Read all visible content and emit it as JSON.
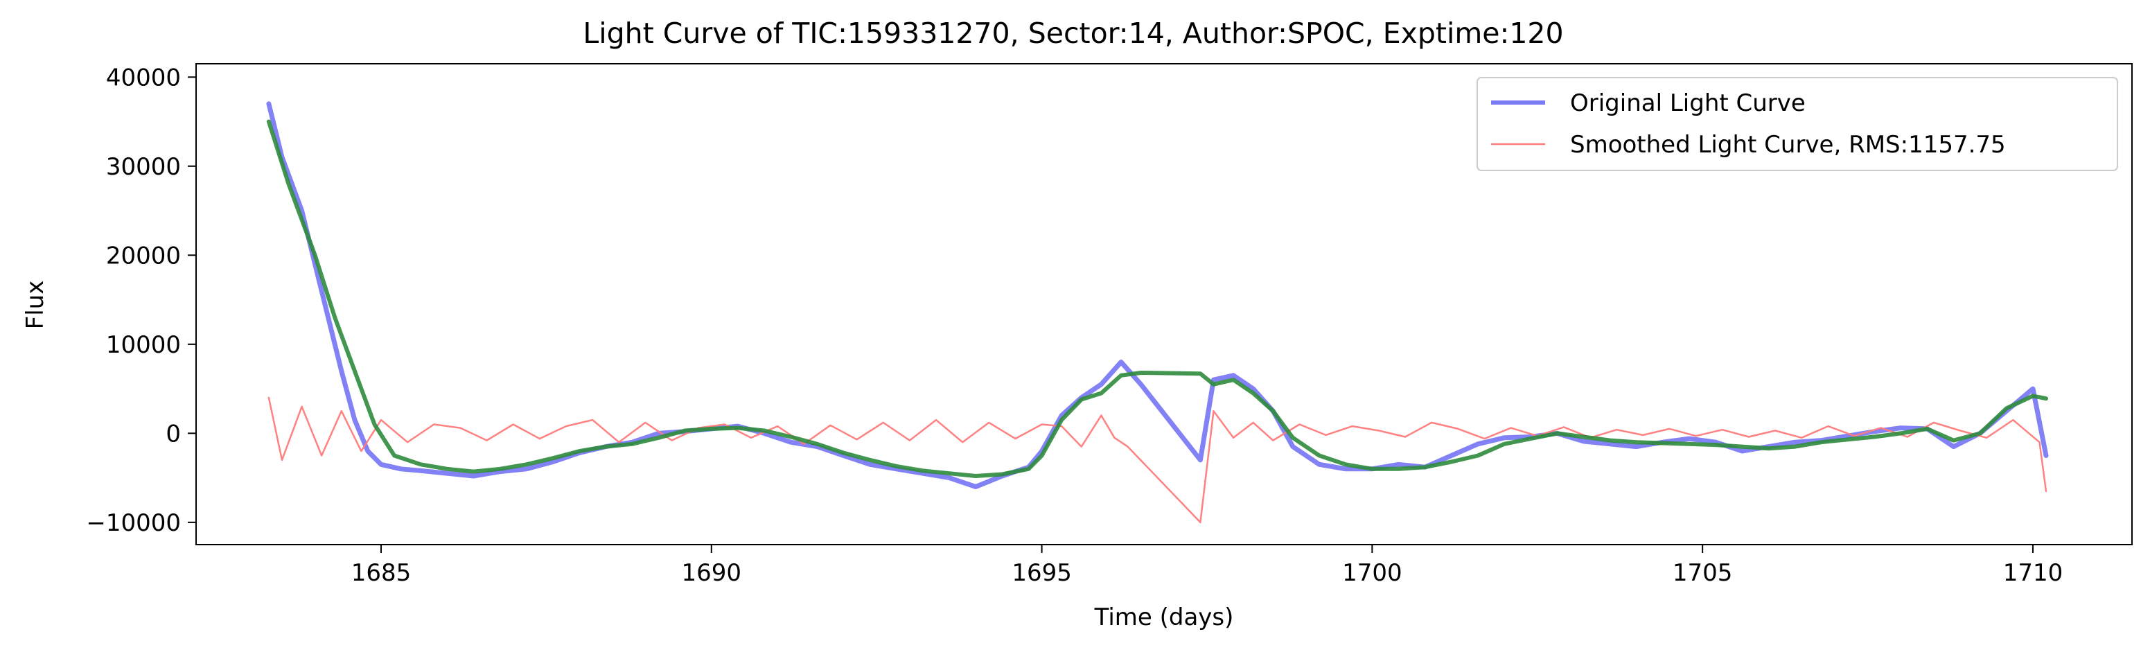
{
  "chart_data": {
    "type": "line",
    "title": "Light Curve of TIC:159331270, Sector:14, Author:SPOC, Exptime:120",
    "xlabel": "Time (days)",
    "ylabel": "Flux",
    "xlim": [
      1682.2,
      1711.5
    ],
    "ylim": [
      -12500,
      41500
    ],
    "xticks": [
      1685,
      1690,
      1695,
      1700,
      1705,
      1710
    ],
    "xtick_labels": [
      "1685",
      "1690",
      "1695",
      "1700",
      "1705",
      "1710"
    ],
    "yticks": [
      -10000,
      0,
      10000,
      20000,
      30000,
      40000
    ],
    "ytick_labels": [
      "−10000",
      "0",
      "10000",
      "20000",
      "30000",
      "40000"
    ],
    "grid": false,
    "legend_position": "top-right",
    "legend": [
      {
        "label": "Original Light Curve",
        "color": "#7b7bf5",
        "style": "thick"
      },
      {
        "label": "Smoothed Light Curve, RMS:1157.75",
        "color": "#ff7b7b",
        "style": "thin"
      }
    ],
    "series": [
      {
        "name": "Original Light Curve",
        "color": "#7b7bf5",
        "x": [
          1683.3,
          1683.5,
          1683.8,
          1684.0,
          1684.2,
          1684.4,
          1684.6,
          1684.8,
          1685.0,
          1685.3,
          1685.6,
          1686.0,
          1686.4,
          1686.8,
          1687.2,
          1687.6,
          1688.0,
          1688.4,
          1688.8,
          1689.2,
          1689.6,
          1690.0,
          1690.4,
          1690.8,
          1691.2,
          1691.6,
          1692.0,
          1692.4,
          1692.8,
          1693.2,
          1693.6,
          1694.0,
          1694.4,
          1694.8,
          1695.0,
          1695.3,
          1695.6,
          1695.9,
          1696.2,
          1696.5,
          1697.4,
          1697.6,
          1697.9,
          1698.2,
          1698.5,
          1698.8,
          1699.2,
          1699.6,
          1700.0,
          1700.4,
          1700.8,
          1701.2,
          1701.6,
          1702.0,
          1702.4,
          1702.8,
          1703.2,
          1703.6,
          1704.0,
          1704.4,
          1704.8,
          1705.2,
          1705.6,
          1706.0,
          1706.4,
          1706.8,
          1707.2,
          1707.6,
          1708.0,
          1708.4,
          1708.8,
          1709.2,
          1709.6,
          1710.0,
          1710.2
        ],
        "y": [
          37000,
          31000,
          25000,
          19000,
          13000,
          7000,
          1500,
          -2000,
          -3500,
          -4000,
          -4200,
          -4500,
          -4800,
          -4300,
          -4000,
          -3200,
          -2200,
          -1500,
          -1000,
          0,
          200,
          500,
          800,
          0,
          -1000,
          -1500,
          -2500,
          -3500,
          -4000,
          -4500,
          -5000,
          -6000,
          -4800,
          -3800,
          -2000,
          2000,
          4000,
          5500,
          8000,
          5500,
          -3000,
          6000,
          6500,
          5000,
          2500,
          -1500,
          -3500,
          -4000,
          -4000,
          -3500,
          -3800,
          -2500,
          -1200,
          -500,
          -400,
          0,
          -900,
          -1200,
          -1500,
          -1000,
          -600,
          -1000,
          -2000,
          -1500,
          -1000,
          -800,
          -300,
          200,
          600,
          500,
          -1500,
          0,
          2500,
          5000,
          -2500
        ]
      },
      {
        "name": "Smoothed Light Curve, RMS:1157.75",
        "color": "#ff7b7b",
        "x": [
          1683.3,
          1683.5,
          1683.8,
          1684.1,
          1684.4,
          1684.7,
          1685.0,
          1685.4,
          1685.8,
          1686.2,
          1686.6,
          1687.0,
          1687.4,
          1687.8,
          1688.2,
          1688.6,
          1689.0,
          1689.4,
          1689.8,
          1690.2,
          1690.6,
          1691.0,
          1691.4,
          1691.8,
          1692.2,
          1692.6,
          1693.0,
          1693.4,
          1693.8,
          1694.2,
          1694.6,
          1695.0,
          1695.3,
          1695.6,
          1695.9,
          1696.1,
          1696.3,
          1697.4,
          1697.6,
          1697.9,
          1698.2,
          1698.5,
          1698.9,
          1699.3,
          1699.7,
          1700.1,
          1700.5,
          1700.9,
          1701.3,
          1701.7,
          1702.1,
          1702.5,
          1702.9,
          1703.3,
          1703.7,
          1704.1,
          1704.5,
          1704.9,
          1705.3,
          1705.7,
          1706.1,
          1706.5,
          1706.9,
          1707.3,
          1707.7,
          1708.1,
          1708.5,
          1708.9,
          1709.3,
          1709.7,
          1710.1,
          1710.2
        ],
        "y": [
          4000,
          -3000,
          3000,
          -2500,
          2500,
          -2000,
          1500,
          -1000,
          1000,
          600,
          -800,
          1000,
          -600,
          800,
          1500,
          -1000,
          1200,
          -800,
          600,
          1000,
          -500,
          800,
          -1200,
          900,
          -700,
          1200,
          -800,
          1500,
          -1000,
          1200,
          -600,
          1000,
          800,
          -1500,
          2000,
          -500,
          -1500,
          -10000,
          2500,
          -500,
          1200,
          -800,
          1000,
          -200,
          800,
          300,
          -400,
          1200,
          500,
          -600,
          600,
          -300,
          700,
          -500,
          400,
          -200,
          500,
          -300,
          400,
          -400,
          300,
          -500,
          800,
          -300,
          600,
          -400,
          1200,
          300,
          -500,
          1500,
          -1000,
          -6500
        ]
      },
      {
        "name": "",
        "color": "#2e8b3c",
        "x": [
          1683.3,
          1683.6,
          1684.0,
          1684.3,
          1684.6,
          1684.9,
          1685.2,
          1685.6,
          1686.0,
          1686.4,
          1686.8,
          1687.2,
          1687.6,
          1688.0,
          1688.4,
          1688.8,
          1689.2,
          1689.6,
          1690.0,
          1690.4,
          1690.8,
          1691.2,
          1691.6,
          1692.0,
          1692.4,
          1692.8,
          1693.2,
          1693.6,
          1694.0,
          1694.4,
          1694.8,
          1695.0,
          1695.3,
          1695.6,
          1695.9,
          1696.2,
          1696.5,
          1697.4,
          1697.6,
          1697.9,
          1698.2,
          1698.5,
          1698.8,
          1699.2,
          1699.6,
          1700.0,
          1700.4,
          1700.8,
          1701.2,
          1701.6,
          1702.0,
          1702.4,
          1702.8,
          1703.2,
          1703.6,
          1704.0,
          1704.4,
          1704.8,
          1705.2,
          1705.6,
          1706.0,
          1706.4,
          1706.8,
          1707.2,
          1707.6,
          1708.0,
          1708.4,
          1708.8,
          1709.2,
          1709.6,
          1710.0,
          1710.2
        ],
        "y": [
          35000,
          28000,
          20000,
          13000,
          7000,
          1000,
          -2500,
          -3500,
          -4000,
          -4300,
          -4000,
          -3500,
          -2800,
          -2000,
          -1500,
          -1200,
          -500,
          300,
          500,
          600,
          300,
          -400,
          -1200,
          -2200,
          -3000,
          -3700,
          -4200,
          -4500,
          -4800,
          -4600,
          -4000,
          -2500,
          1500,
          3800,
          4500,
          6500,
          6800,
          6700,
          5500,
          6000,
          4500,
          2500,
          -500,
          -2500,
          -3500,
          -4000,
          -4000,
          -3800,
          -3200,
          -2500,
          -1200,
          -600,
          0,
          -400,
          -800,
          -1000,
          -1100,
          -1200,
          -1300,
          -1500,
          -1700,
          -1500,
          -1000,
          -700,
          -400,
          0,
          500,
          -800,
          0,
          2800,
          4200,
          3900
        ]
      }
    ]
  }
}
